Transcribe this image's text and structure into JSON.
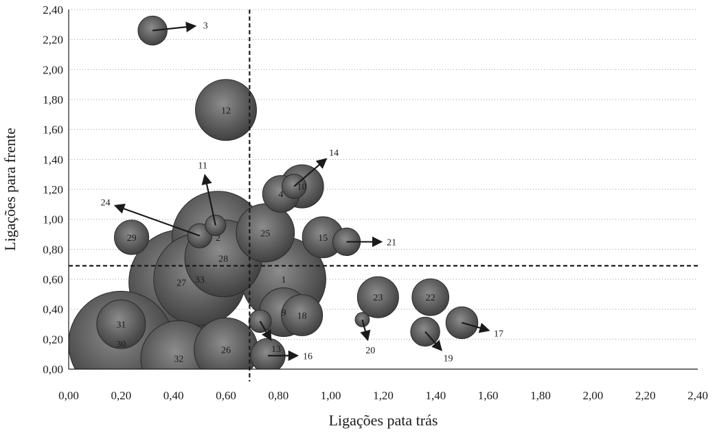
{
  "chart_data": {
    "type": "scatter",
    "title": "",
    "xlabel": "Ligações pata trás",
    "ylabel": "Ligações para frente",
    "xlim": [
      0,
      2.4
    ],
    "ylim": [
      0,
      2.4
    ],
    "x_ticks": [
      "0,00",
      "0,20",
      "0,40",
      "0,60",
      "0,80",
      "1,00",
      "1,20",
      "1,40",
      "1,60",
      "1,80",
      "2,00",
      "2,20",
      "2,40"
    ],
    "y_ticks": [
      "0,00",
      "0,20",
      "0,40",
      "0,60",
      "0,80",
      "1,00",
      "1,20",
      "1,40",
      "1,60",
      "1,80",
      "2,00",
      "2,20",
      "2,40"
    ],
    "grid": "horizontal-dotted",
    "reference_lines": {
      "x": 0.69,
      "y": 0.69
    },
    "bubble_color": "#606060",
    "arrow_color": "#1a1a1a",
    "points": [
      {
        "label": "1",
        "x": 0.82,
        "y": 0.6,
        "size": 4.2
      },
      {
        "label": "2",
        "x": 0.57,
        "y": 0.88,
        "size": 5.0
      },
      {
        "label": "3",
        "x": 0.32,
        "y": 2.26,
        "size": 0.5
      },
      {
        "label": "4",
        "x": 0.81,
        "y": 1.17,
        "size": 0.8
      },
      {
        "label": "9",
        "x": 0.82,
        "y": 0.38,
        "size": 1.4
      },
      {
        "label": "10",
        "x": 0.89,
        "y": 1.22,
        "size": 1.1
      },
      {
        "label": "11",
        "x": 0.56,
        "y": 0.96,
        "size": 0.25
      },
      {
        "label": "12",
        "x": 0.6,
        "y": 1.73,
        "size": 2.2
      },
      {
        "label": "13",
        "x": 0.73,
        "y": 0.32,
        "size": 0.3
      },
      {
        "label": "14",
        "x": 0.86,
        "y": 1.22,
        "size": 0.35
      },
      {
        "label": "15",
        "x": 0.97,
        "y": 0.88,
        "size": 1.0
      },
      {
        "label": "16",
        "x": 0.76,
        "y": 0.09,
        "size": 0.7
      },
      {
        "label": "17",
        "x": 1.5,
        "y": 0.31,
        "size": 0.6
      },
      {
        "label": "18",
        "x": 0.89,
        "y": 0.36,
        "size": 1.0
      },
      {
        "label": "19",
        "x": 1.36,
        "y": 0.25,
        "size": 0.5
      },
      {
        "label": "20",
        "x": 1.12,
        "y": 0.33,
        "size": 0.12
      },
      {
        "label": "21",
        "x": 1.06,
        "y": 0.85,
        "size": 0.45
      },
      {
        "label": "22",
        "x": 1.38,
        "y": 0.48,
        "size": 0.8
      },
      {
        "label": "23",
        "x": 1.18,
        "y": 0.48,
        "size": 1.0
      },
      {
        "label": "24",
        "x": 0.5,
        "y": 0.89,
        "size": 0.35
      },
      {
        "label": "25",
        "x": 0.75,
        "y": 0.91,
        "size": 2.0
      },
      {
        "label": "26",
        "x": 0.6,
        "y": 0.13,
        "size": 2.4
      },
      {
        "label": "27",
        "x": 0.43,
        "y": 0.58,
        "size": 6.5
      },
      {
        "label": "28",
        "x": 0.59,
        "y": 0.74,
        "size": 3.5
      },
      {
        "label": "29",
        "x": 0.24,
        "y": 0.88,
        "size": 0.7
      },
      {
        "label": "30",
        "x": 0.2,
        "y": 0.17,
        "size": 6.5
      },
      {
        "label": "31",
        "x": 0.2,
        "y": 0.3,
        "size": 1.4
      },
      {
        "label": "32",
        "x": 0.42,
        "y": 0.07,
        "size": 3.4
      },
      {
        "label": "33",
        "x": 0.5,
        "y": 0.6,
        "size": 5.0
      }
    ],
    "arrows": [
      {
        "label": "3",
        "from": [
          0.32,
          2.26
        ],
        "to": [
          0.48,
          2.29
        ]
      },
      {
        "label": "11",
        "from": [
          0.56,
          0.96
        ],
        "to": [
          0.52,
          1.29
        ]
      },
      {
        "label": "14",
        "from": [
          0.86,
          1.22
        ],
        "to": [
          0.98,
          1.4
        ]
      },
      {
        "label": "24",
        "from": [
          0.5,
          0.89
        ],
        "to": [
          0.18,
          1.09
        ]
      },
      {
        "label": "21",
        "from": [
          1.06,
          0.85
        ],
        "to": [
          1.19,
          0.85
        ]
      },
      {
        "label": "13",
        "from": [
          0.73,
          0.32
        ],
        "to": [
          0.77,
          0.2
        ]
      },
      {
        "label": "16",
        "from": [
          0.76,
          0.09
        ],
        "to": [
          0.87,
          0.09
        ]
      },
      {
        "label": "20",
        "from": [
          1.12,
          0.33
        ],
        "to": [
          1.14,
          0.2
        ]
      },
      {
        "label": "17",
        "from": [
          1.5,
          0.31
        ],
        "to": [
          1.6,
          0.26
        ]
      },
      {
        "label": "19",
        "from": [
          1.36,
          0.25
        ],
        "to": [
          1.42,
          0.13
        ]
      }
    ]
  }
}
